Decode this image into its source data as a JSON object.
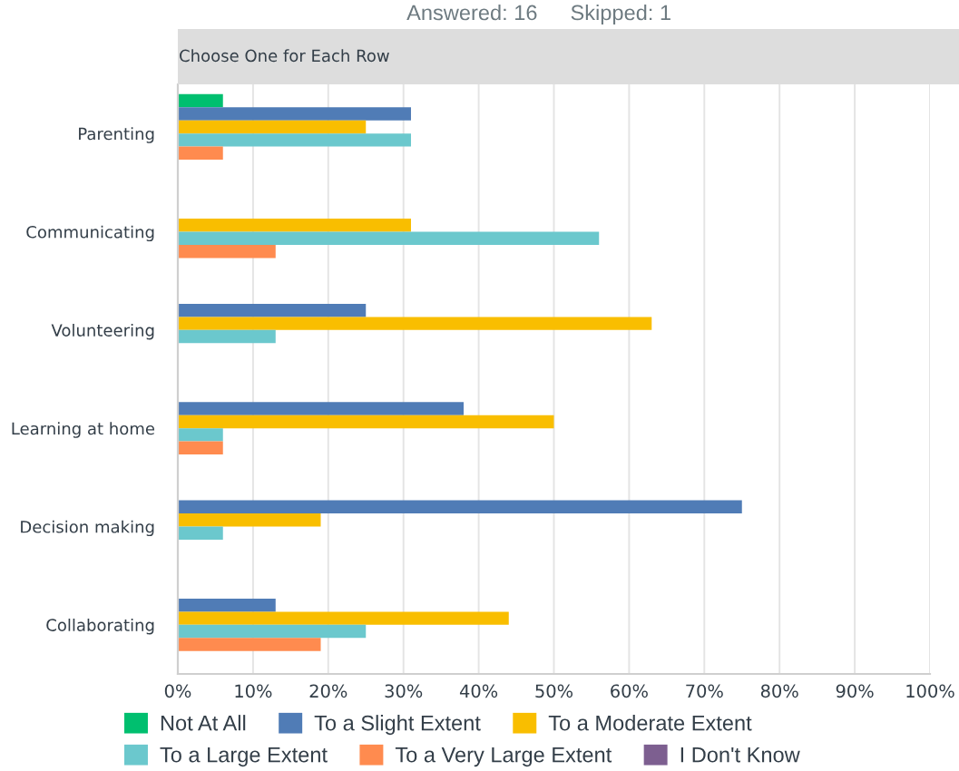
{
  "chart_data": {
    "type": "bar",
    "orientation": "horizontal",
    "title": "Choose One for Each Row",
    "subtitle": "Answered: 16",
    "annotations": [
      "Skipped: 1"
    ],
    "categories": [
      "Parenting",
      "Communicating",
      "Volunteering",
      "Learning at home",
      "Decision making",
      "Collaborating"
    ],
    "series": [
      {
        "name": "Not At All",
        "color": "#00bf6f",
        "values": [
          6,
          0,
          0,
          0,
          0,
          0
        ]
      },
      {
        "name": "To a Slight Extent",
        "color": "#507cb6",
        "values": [
          31,
          0,
          25,
          38,
          75,
          13
        ]
      },
      {
        "name": "To a Moderate Extent",
        "color": "#f9be00",
        "values": [
          25,
          31,
          63,
          50,
          19,
          44
        ]
      },
      {
        "name": "To a Large Extent",
        "color": "#6bc8cd",
        "values": [
          31,
          56,
          13,
          6,
          6,
          25
        ]
      },
      {
        "name": "To a Very Large Extent",
        "color": "#ff8b4f",
        "values": [
          6,
          13,
          0,
          6,
          0,
          19
        ]
      },
      {
        "name": "I Don't Know",
        "color": "#7d5f90",
        "values": [
          0,
          0,
          0,
          0,
          0,
          0
        ]
      }
    ],
    "xlim": [
      0,
      100
    ],
    "xticks": [
      {
        "value": 0,
        "label": "0%"
      },
      {
        "value": 10,
        "label": "10%"
      },
      {
        "value": 20,
        "label": "20%"
      },
      {
        "value": 30,
        "label": "30%"
      },
      {
        "value": 40,
        "label": "40%"
      },
      {
        "value": 50,
        "label": "50%"
      },
      {
        "value": 60,
        "label": "60%"
      },
      {
        "value": 70,
        "label": "70%"
      },
      {
        "value": 80,
        "label": "80%"
      },
      {
        "value": 90,
        "label": "90%"
      },
      {
        "value": 100,
        "label": "100%"
      }
    ],
    "grid": "x",
    "legend": "bottom"
  }
}
